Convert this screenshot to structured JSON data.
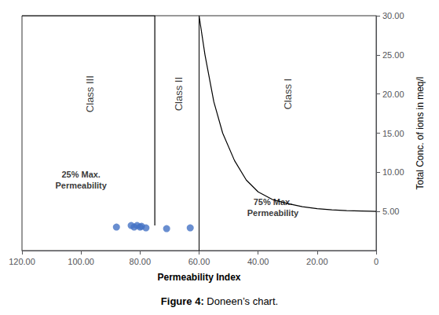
{
  "chart_data": {
    "type": "line",
    "title_bold": "Figure 4:",
    "title": " Doneen’s chart.",
    "xlabel": "Permeability Index",
    "ylabel": "Total Conc. of ions in meq/l",
    "xlim": [
      120,
      0
    ],
    "ylim": [
      0,
      30
    ],
    "xticks": [
      {
        "value": 120,
        "label": "120.00"
      },
      {
        "value": 100,
        "label": "100.00"
      },
      {
        "value": 80,
        "label": "80.00"
      },
      {
        "value": 60,
        "label": "60.00"
      },
      {
        "value": 40,
        "label": "40.00"
      },
      {
        "value": 20,
        "label": "20.00"
      },
      0
    ],
    "yticks": [
      {
        "value": 5,
        "label": "5.00"
      },
      {
        "value": 10,
        "label": "10.00"
      },
      {
        "value": 15,
        "label": "15.00"
      },
      {
        "value": 20,
        "label": "20.00"
      },
      {
        "value": 25,
        "label": "25.00"
      },
      {
        "value": 30,
        "label": "30.00"
      }
    ],
    "grid": false,
    "series": [
      {
        "type": "line",
        "color": "#000000",
        "x": [
          120,
          75,
          75
        ],
        "values": [
          30,
          30,
          3.2
        ]
      },
      {
        "type": "line",
        "color": "#000000",
        "x": [
          60,
          58,
          55,
          52,
          48,
          44,
          40,
          35,
          30,
          25,
          20,
          15,
          10,
          5,
          2,
          0
        ],
        "values": [
          30,
          25,
          19,
          15,
          11.5,
          9.0,
          7.5,
          6.5,
          6.0,
          5.6,
          5.35,
          5.2,
          5.1,
          5.05,
          5.02,
          5.0
        ]
      },
      {
        "type": "scatter",
        "color": "#4472C4",
        "x": [
          88,
          83,
          82,
          81,
          80,
          79.5,
          78,
          71,
          63
        ],
        "values": [
          3.0,
          3.2,
          3.0,
          3.2,
          3.0,
          3.1,
          2.9,
          2.8,
          2.9
        ]
      }
    ],
    "vlines": [
      {
        "x": 60,
        "color": "#000000"
      }
    ],
    "class_labels": [
      {
        "text": "Class III",
        "x": 97,
        "y": 20
      },
      {
        "text": "Class II",
        "x": 67,
        "y": 20
      },
      {
        "text": "Class I",
        "x": 30,
        "y": 20
      }
    ],
    "annotations": [
      {
        "text": "25% Max.\nPermeability",
        "x": 100,
        "y": 9
      },
      {
        "text": "75% Max.\nPermeability",
        "x": 35,
        "y": 5.5
      }
    ]
  }
}
